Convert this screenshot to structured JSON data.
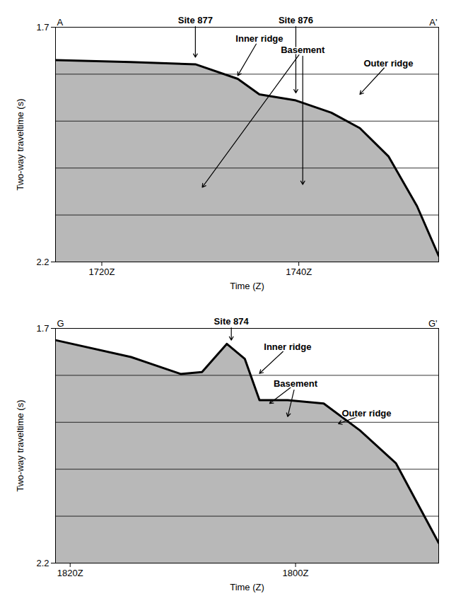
{
  "chart_data": [
    {
      "type": "line",
      "left_label": "A",
      "right_label": "A'",
      "xlabel": "Time (Z)",
      "ylabel": "Two-way traveltime (s)",
      "color": "#000000",
      "x": [
        1715.3,
        1722.9,
        1729.5,
        1733.8,
        1736.0,
        1739.7,
        1743.3,
        1746.2,
        1749.1,
        1752.0,
        1754.2
      ],
      "values": [
        1.77,
        1.774,
        1.779,
        1.81,
        1.843,
        1.856,
        1.882,
        1.915,
        1.975,
        2.081,
        2.187
      ],
      "xlim": [
        1715.3,
        1754.2
      ],
      "ylim": [
        1.7,
        2.2
      ],
      "xticks": [
        {
          "value": 1720,
          "label": "1720Z"
        },
        {
          "value": 1740,
          "label": "1740Z"
        }
      ],
      "yticks": [
        1.7,
        {
          "value": 1.8,
          "label": null
        },
        {
          "value": 1.9,
          "label": null
        },
        {
          "value": 2.0,
          "label": null
        },
        {
          "value": 2.1,
          "label": null
        },
        2.2
      ],
      "grid": true,
      "annotations": [
        {
          "text": "Site 877",
          "x": 1729.5,
          "y": 1.685,
          "arrows": [
            [
              1729.5,
              1.764
            ]
          ]
        },
        {
          "text": "Site 876",
          "x": 1739.7,
          "y": 1.685,
          "arrows": [
            [
              1739.7,
              1.84
            ]
          ]
        },
        {
          "text": "Inner ridge",
          "x": 1736.0,
          "y": 1.724,
          "arrows": [
            [
              1733.8,
              1.803
            ]
          ]
        },
        {
          "text": "Basement",
          "x": 1740.4,
          "y": 1.748,
          "arrows": [
            [
              1730.2,
              2.041
            ],
            [
              1740.4,
              2.035
            ]
          ]
        },
        {
          "text": "Outer ridge",
          "x": 1749.1,
          "y": 1.777,
          "arrows": [
            [
              1746.2,
              1.843
            ]
          ]
        }
      ]
    },
    {
      "type": "line",
      "left_label": "G",
      "right_label": "G'",
      "xlabel": "Time (Z)",
      "ylabel": "Two-way traveltime (s)",
      "color": "#000000",
      "x": [
        1821.3,
        1814.6,
        1810.2,
        1808.3,
        1806.1,
        1804.5,
        1803.2,
        1800.7,
        1797.5,
        1794.3,
        1791.1,
        1789.2,
        1787.3
      ],
      "values": [
        1.725,
        1.761,
        1.797,
        1.793,
        1.733,
        1.765,
        1.853,
        1.853,
        1.86,
        1.917,
        1.987,
        2.072,
        2.157
      ],
      "xlim": [
        1821.3,
        1787.3
      ],
      "ylim": [
        1.7,
        2.2
      ],
      "xticks": [
        {
          "value": 1820,
          "label": "1820Z"
        },
        {
          "value": 1800,
          "label": "1800Z"
        }
      ],
      "yticks": [
        1.7,
        {
          "value": 1.8,
          "label": null
        },
        {
          "value": 1.9,
          "label": null
        },
        {
          "value": 2.0,
          "label": null
        },
        {
          "value": 2.1,
          "label": null
        },
        2.2
      ],
      "grid": true,
      "annotations": [
        {
          "text": "Site 874",
          "x": 1805.7,
          "y": 1.685,
          "arrows": [
            [
              1805.7,
              1.725
            ]
          ]
        },
        {
          "text": "Inner ridge",
          "x": 1800.7,
          "y": 1.74,
          "arrows": [
            [
              1803.2,
              1.796
            ]
          ]
        },
        {
          "text": "Basement",
          "x": 1800.0,
          "y": 1.818,
          "arrows": [
            [
              1802.3,
              1.86
            ],
            [
              1800.7,
              1.888
            ]
          ]
        },
        {
          "text": "Outer ridge",
          "x": 1793.7,
          "y": 1.881,
          "arrows": [
            [
              1796.2,
              1.903
            ]
          ]
        }
      ]
    }
  ]
}
